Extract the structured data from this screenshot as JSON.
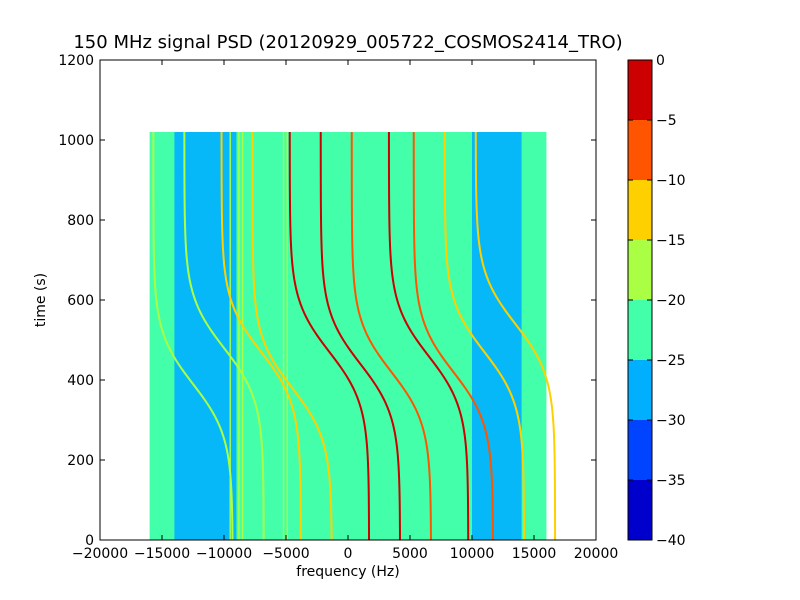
{
  "chart_data": {
    "type": "heatmap",
    "title": "150 MHz signal PSD (20120929_005722_COSMOS2414_TRO)",
    "xlabel": "frequency (Hz)",
    "ylabel": "time (s)",
    "xlim": [
      -20000,
      20000
    ],
    "ylim": [
      0,
      1200
    ],
    "xticks": [
      -20000,
      -15000,
      -10000,
      -5000,
      0,
      5000,
      10000,
      15000,
      20000
    ],
    "xtick_labels": [
      "−20000",
      "−15000",
      "−10000",
      "−5000",
      "0",
      "5000",
      "10000",
      "15000",
      "20000"
    ],
    "yticks": [
      0,
      200,
      400,
      600,
      800,
      1000,
      1200
    ],
    "ytick_labels": [
      "0",
      "200",
      "400",
      "600",
      "800",
      "1000",
      "1200"
    ],
    "grid": false,
    "data_extent": {
      "freq": [
        -16000,
        16000
      ],
      "time": [
        0,
        1020
      ]
    },
    "colorbar": {
      "range": [
        -40,
        0
      ],
      "levels": [
        -40,
        -35,
        -30,
        -25,
        -20,
        -15,
        -10,
        -5,
        0
      ],
      "tick_labels": [
        "0",
        "−5",
        "−10",
        "−15",
        "−20",
        "−25",
        "−30",
        "−35",
        "−40"
      ],
      "colors": [
        "#0000cc",
        "#0044ff",
        "#00b0ff",
        "#44ffaa",
        "#aaff44",
        "#ffd000",
        "#ff5500",
        "#cc0000"
      ]
    },
    "band_colors": {
      "background": "#44ffaa",
      "low": "#00b0ff"
    },
    "low_bands": [
      [
        -14000,
        -9000
      ],
      [
        10000,
        14000
      ]
    ],
    "vertical_lines": [
      -9500,
      -8800,
      -8500,
      -5200,
      -4900
    ],
    "traces": [
      {
        "center": -12500,
        "t0": 390,
        "level": -20
      },
      {
        "center": -10000,
        "t0": 480,
        "level": -20
      },
      {
        "center": -7000,
        "t0": 470,
        "level": -15
      },
      {
        "center": -4500,
        "t0": 380,
        "level": -15
      },
      {
        "center": -1500,
        "t0": 470,
        "level": -5
      },
      {
        "center": 1000,
        "t0": 440,
        "level": -5
      },
      {
        "center": 3500,
        "t0": 420,
        "level": -10
      },
      {
        "center": 6500,
        "t0": 460,
        "level": -5
      },
      {
        "center": 8500,
        "t0": 420,
        "level": -10
      },
      {
        "center": 11000,
        "t0": 470,
        "level": -15
      },
      {
        "center": 13500,
        "t0": 540,
        "level": -15
      }
    ]
  }
}
